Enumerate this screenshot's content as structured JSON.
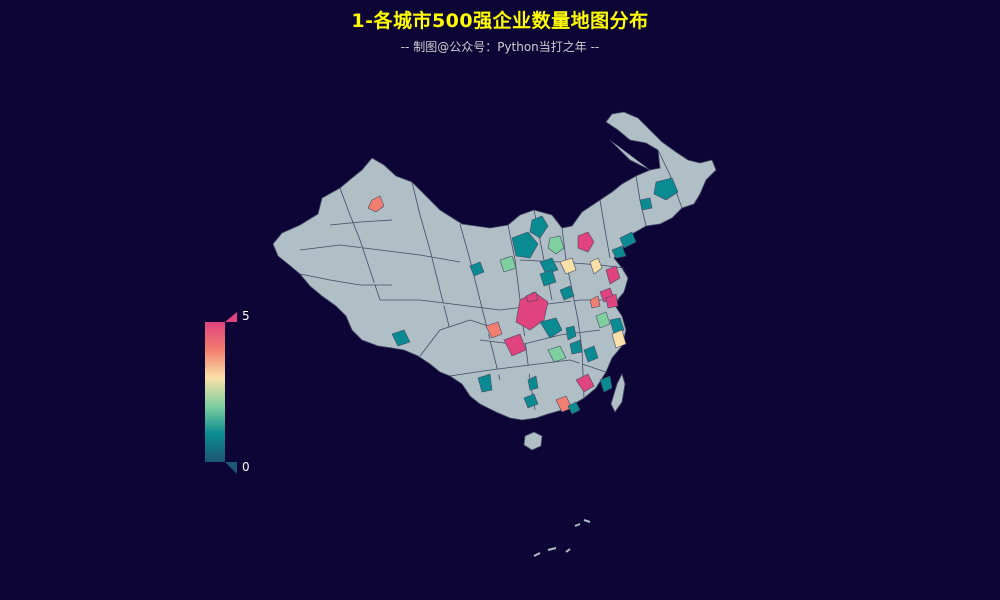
{
  "title": "1-各城市500强企业数量地图分布",
  "subtitle": "-- 制图@公众号：Python当打之年 --",
  "colors": {
    "background": "#0c0536",
    "title": "#ffff00",
    "subtitle": "#cfcfcf",
    "land": "#b0bec5",
    "border": "#444a66",
    "legend_text": "#ffffff"
  },
  "visual_map": {
    "max_label": "5",
    "min_label": "0",
    "range": [
      0,
      5
    ],
    "colors": [
      "#1e5675",
      "#0a8a91",
      "#7fcf9f",
      "#f9e0a8",
      "#f27e6f",
      "#e0437d"
    ]
  },
  "map_data": {
    "type": "choropleth",
    "region": "China (city-level)",
    "regions": [
      {
        "value": 4
      },
      {
        "value": 5
      },
      {
        "value": 1
      },
      {
        "value": 1
      },
      {
        "value": 2
      },
      {
        "value": 5
      },
      {
        "value": 3
      },
      {
        "value": 1
      },
      {
        "value": 1
      },
      {
        "value": 1
      },
      {
        "value": 5
      },
      {
        "value": 1
      },
      {
        "value": 4
      },
      {
        "value": 5
      },
      {
        "value": 1
      },
      {
        "value": 2
      },
      {
        "value": 1
      },
      {
        "value": 1
      },
      {
        "value": 5
      },
      {
        "value": 1
      },
      {
        "value": 3
      },
      {
        "value": 1
      },
      {
        "value": 2
      },
      {
        "value": 5
      },
      {
        "value": 1
      },
      {
        "value": 4
      },
      {
        "value": 1
      },
      {
        "value": 1
      },
      {
        "value": 5
      },
      {
        "value": 1
      },
      {
        "value": 3
      },
      {
        "value": 1
      },
      {
        "value": 1
      },
      {
        "value": 2
      },
      {
        "value": 1
      },
      {
        "value": 1
      },
      {
        "value": 5
      },
      {
        "value": 1
      },
      {
        "value": 4
      },
      {
        "value": 1
      }
    ]
  }
}
